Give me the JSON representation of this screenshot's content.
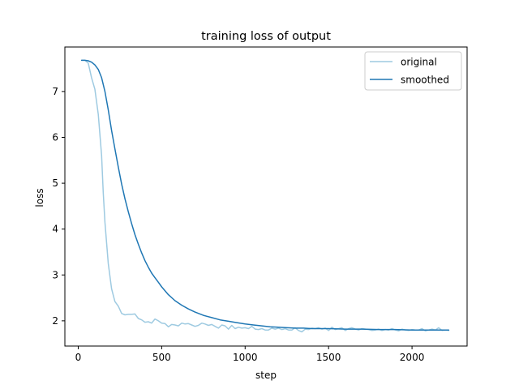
{
  "chart_data": {
    "type": "line",
    "title": "training loss of output",
    "xlabel": "step",
    "ylabel": "loss",
    "xlim": [
      -80,
      2330
    ],
    "ylim": [
      1.45,
      7.97
    ],
    "xticks": [
      0,
      500,
      1000,
      1500,
      2000
    ],
    "yticks": [
      2,
      3,
      4,
      5,
      6,
      7
    ],
    "grid": false,
    "legend_position": "top-right",
    "series": [
      {
        "name": "original",
        "color": "#9ecae1",
        "x": [
          20,
          40,
          60,
          80,
          100,
          120,
          140,
          150,
          160,
          180,
          200,
          220,
          240,
          260,
          280,
          300,
          320,
          340,
          360,
          380,
          400,
          420,
          440,
          460,
          480,
          500,
          520,
          540,
          560,
          580,
          600,
          620,
          640,
          660,
          680,
          700,
          720,
          740,
          760,
          780,
          800,
          820,
          840,
          860,
          880,
          900,
          920,
          940,
          960,
          980,
          1000,
          1020,
          1040,
          1060,
          1080,
          1100,
          1120,
          1140,
          1160,
          1180,
          1200,
          1220,
          1240,
          1260,
          1280,
          1300,
          1320,
          1340,
          1360,
          1380,
          1400,
          1420,
          1440,
          1460,
          1480,
          1500,
          1520,
          1540,
          1560,
          1580,
          1600,
          1620,
          1640,
          1660,
          1680,
          1700,
          1720,
          1740,
          1760,
          1780,
          1800,
          1820,
          1840,
          1860,
          1880,
          1900,
          1920,
          1940,
          1960,
          1980,
          2000,
          2020,
          2040,
          2060,
          2080,
          2100,
          2120,
          2140,
          2160,
          2180,
          2200,
          2220
        ],
        "y": [
          7.68,
          7.68,
          7.62,
          7.3,
          7.05,
          6.5,
          5.6,
          4.8,
          4.15,
          3.25,
          2.7,
          2.42,
          2.32,
          2.16,
          2.13,
          2.14,
          2.14,
          2.15,
          2.05,
          2.02,
          1.97,
          1.98,
          1.95,
          2.04,
          2.0,
          1.95,
          1.94,
          1.87,
          1.92,
          1.91,
          1.89,
          1.95,
          1.93,
          1.94,
          1.91,
          1.88,
          1.9,
          1.95,
          1.93,
          1.9,
          1.92,
          1.88,
          1.84,
          1.91,
          1.89,
          1.82,
          1.9,
          1.83,
          1.86,
          1.84,
          1.85,
          1.83,
          1.88,
          1.82,
          1.81,
          1.83,
          1.8,
          1.8,
          1.84,
          1.82,
          1.84,
          1.81,
          1.83,
          1.8,
          1.8,
          1.85,
          1.79,
          1.76,
          1.82,
          1.81,
          1.84,
          1.83,
          1.85,
          1.82,
          1.84,
          1.79,
          1.86,
          1.81,
          1.83,
          1.85,
          1.79,
          1.83,
          1.85,
          1.82,
          1.8,
          1.83,
          1.82,
          1.81,
          1.79,
          1.8,
          1.82,
          1.79,
          1.81,
          1.8,
          1.83,
          1.8,
          1.78,
          1.82,
          1.8,
          1.79,
          1.81,
          1.8,
          1.8,
          1.83,
          1.78,
          1.8,
          1.82,
          1.8,
          1.85,
          1.79,
          1.8,
          1.79
        ]
      },
      {
        "name": "smoothed",
        "color": "#1f77b4",
        "x": [
          20,
          40,
          60,
          80,
          100,
          120,
          140,
          160,
          180,
          200,
          220,
          240,
          260,
          280,
          300,
          320,
          340,
          360,
          380,
          400,
          420,
          440,
          460,
          480,
          500,
          540,
          580,
          620,
          660,
          700,
          750,
          800,
          850,
          900,
          950,
          1000,
          1050,
          1100,
          1150,
          1200,
          1250,
          1300,
          1350,
          1400,
          1450,
          1500,
          1600,
          1700,
          1800,
          1900,
          2000,
          2100,
          2200,
          2220
        ],
        "y": [
          7.68,
          7.68,
          7.67,
          7.64,
          7.58,
          7.48,
          7.3,
          7.0,
          6.6,
          6.15,
          5.75,
          5.35,
          4.98,
          4.66,
          4.38,
          4.12,
          3.88,
          3.67,
          3.48,
          3.31,
          3.17,
          3.04,
          2.94,
          2.84,
          2.74,
          2.57,
          2.44,
          2.34,
          2.26,
          2.19,
          2.12,
          2.07,
          2.02,
          1.99,
          1.96,
          1.93,
          1.91,
          1.89,
          1.87,
          1.86,
          1.85,
          1.84,
          1.84,
          1.83,
          1.83,
          1.83,
          1.82,
          1.82,
          1.81,
          1.81,
          1.8,
          1.8,
          1.8,
          1.8
        ]
      }
    ]
  }
}
